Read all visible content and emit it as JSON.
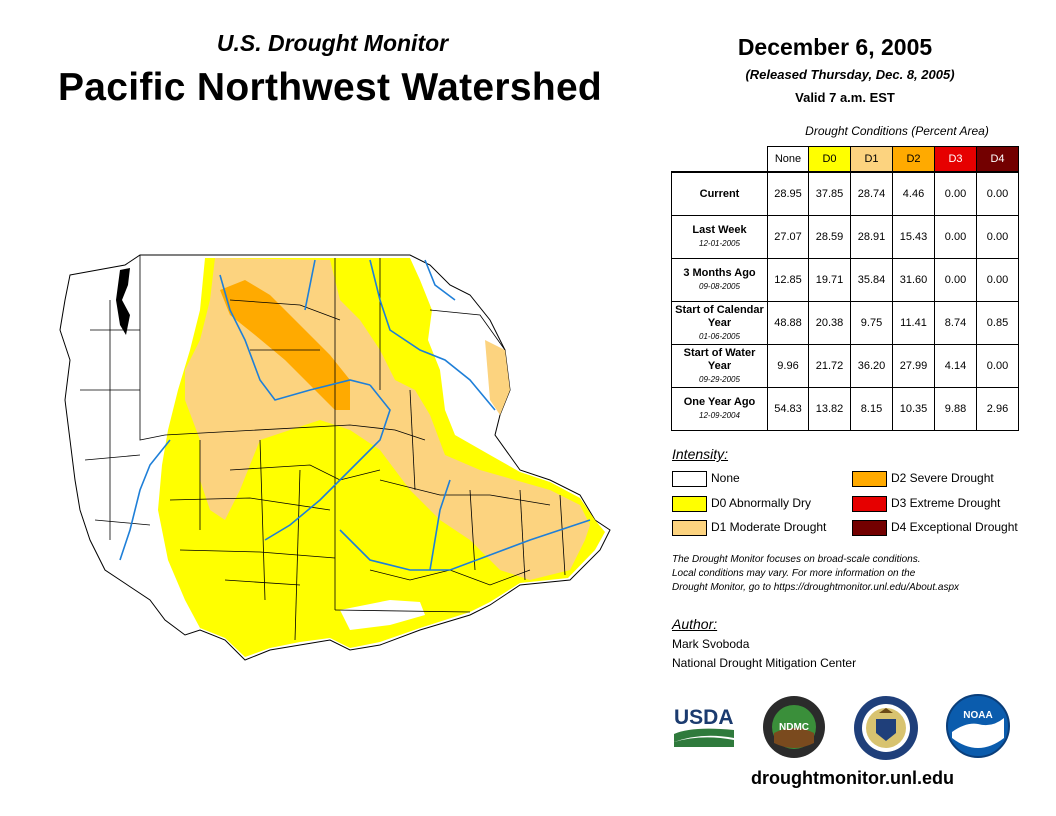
{
  "header": {
    "subtitle": "U.S. Drought Monitor",
    "title": "Pacific Northwest Watershed",
    "date": "December 6, 2005",
    "released": "(Released Thursday, Dec. 8, 2005)",
    "valid": "Valid 7 a.m. EST"
  },
  "table": {
    "caption": "Drought Conditions (Percent Area)",
    "columns": [
      {
        "label": "None",
        "color": "#ffffff"
      },
      {
        "label": "D0",
        "color": "#ffff00"
      },
      {
        "label": "D1",
        "color": "#fcd37f"
      },
      {
        "label": "D2",
        "color": "#ffaa00"
      },
      {
        "label": "D3",
        "color": "#e60000"
      },
      {
        "label": "D4",
        "color": "#730000"
      }
    ],
    "rows": [
      {
        "label": "Current",
        "sublabel": "",
        "values": [
          "28.95",
          "37.85",
          "28.74",
          "4.46",
          "0.00",
          "0.00"
        ]
      },
      {
        "label": "Last Week",
        "sublabel": "12-01-2005",
        "values": [
          "27.07",
          "28.59",
          "28.91",
          "15.43",
          "0.00",
          "0.00"
        ]
      },
      {
        "label": "3 Months Ago",
        "sublabel": "09-08-2005",
        "values": [
          "12.85",
          "19.71",
          "35.84",
          "31.60",
          "0.00",
          "0.00"
        ]
      },
      {
        "label": "Start of Calendar Year",
        "sublabel": "01-06-2005",
        "values": [
          "48.88",
          "20.38",
          "9.75",
          "11.41",
          "8.74",
          "0.85"
        ]
      },
      {
        "label": "Start of Water Year",
        "sublabel": "09-29-2005",
        "values": [
          "9.96",
          "21.72",
          "36.20",
          "27.99",
          "4.14",
          "0.00"
        ]
      },
      {
        "label": "One Year Ago",
        "sublabel": "12-09-2004",
        "values": [
          "54.83",
          "13.82",
          "8.15",
          "10.35",
          "9.88",
          "2.96"
        ]
      }
    ]
  },
  "legend": {
    "title": "Intensity:",
    "items": [
      {
        "label": "None",
        "color": "#ffffff"
      },
      {
        "label": "D0 Abnormally Dry",
        "color": "#ffff00"
      },
      {
        "label": "D1 Moderate Drought",
        "color": "#fcd37f"
      },
      {
        "label": "D2 Severe Drought",
        "color": "#ffaa00"
      },
      {
        "label": "D3 Extreme Drought",
        "color": "#e60000"
      },
      {
        "label": "D4 Exceptional Drought",
        "color": "#730000"
      }
    ]
  },
  "note": {
    "line1": "The Drought Monitor focuses on broad-scale conditions.",
    "line2": "Local conditions may vary. For more information on the",
    "line3": "Drought Monitor, go to https://droughtmonitor.unl.edu/About.aspx"
  },
  "author": {
    "title": "Author:",
    "name": "Mark Svoboda",
    "org": "National Drought Mitigation Center"
  },
  "logos": {
    "usda": "USDA",
    "ndmc": "NDMC",
    "noaa": "NOAA"
  },
  "website": "droughtmonitor.unl.edu"
}
